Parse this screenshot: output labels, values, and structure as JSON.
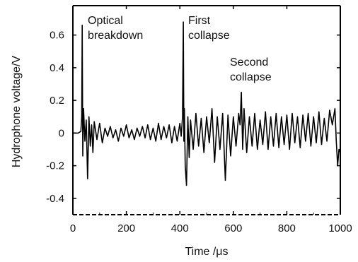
{
  "chart_data": {
    "type": "line",
    "title": "",
    "xlabel": "Time /μs",
    "ylabel": "Hydrophone voltage/V",
    "xlim": [
      0,
      1000
    ],
    "ylim": [
      -0.5,
      0.78
    ],
    "grid": false,
    "legend": "none",
    "line_color": "#000000",
    "x_ticks": [
      "0",
      "200",
      "400",
      "600",
      "800",
      "1000"
    ],
    "y_ticks": [
      "-0.4",
      "-0.2",
      "0",
      "0.2",
      "0.4",
      "0.6"
    ],
    "annotations": [
      {
        "lines": [
          "Optical",
          "breakdown"
        ],
        "x": 35,
        "y": 0.66
      },
      {
        "lines": [
          "First",
          "collapse"
        ],
        "x": 420,
        "y": 0.68
      },
      {
        "lines": [
          "Second",
          "collapse"
        ],
        "x": 630,
        "y": 0.25
      }
    ],
    "series": [
      {
        "x": [
          0,
          10,
          20,
          30,
          33,
          35,
          37,
          40,
          45,
          50,
          55,
          60,
          65,
          70,
          75,
          80,
          90,
          100,
          110,
          120,
          130,
          140,
          150,
          160,
          170,
          180,
          190,
          200,
          210,
          220,
          230,
          240,
          250,
          260,
          270,
          280,
          290,
          300,
          310,
          320,
          330,
          340,
          350,
          360,
          370,
          380,
          390,
          400,
          405,
          410,
          413,
          415,
          417,
          420,
          425,
          430,
          435,
          440,
          450,
          460,
          470,
          480,
          490,
          500,
          510,
          520,
          530,
          540,
          550,
          560,
          570,
          580,
          590,
          600,
          610,
          620,
          625,
          630,
          635,
          640,
          650,
          660,
          670,
          680,
          690,
          700,
          710,
          720,
          730,
          740,
          750,
          760,
          770,
          780,
          790,
          800,
          810,
          820,
          830,
          840,
          850,
          860,
          870,
          880,
          890,
          900,
          910,
          920,
          930,
          940,
          950,
          960,
          970,
          980,
          985,
          990,
          995,
          1000
        ],
        "y": [
          0.0,
          0.0,
          0.0,
          0.01,
          0.1,
          0.66,
          -0.14,
          0.15,
          -0.05,
          0.08,
          -0.28,
          0.1,
          -0.08,
          0.05,
          -0.12,
          0.07,
          -0.04,
          0.06,
          -0.06,
          0.03,
          -0.02,
          0.04,
          -0.03,
          0.02,
          -0.05,
          0.03,
          -0.02,
          0.05,
          -0.03,
          0.02,
          -0.04,
          0.03,
          -0.02,
          0.04,
          -0.03,
          0.05,
          -0.04,
          0.03,
          -0.05,
          0.06,
          -0.04,
          0.04,
          -0.03,
          0.05,
          -0.06,
          0.04,
          -0.05,
          0.06,
          -0.02,
          0.1,
          0.68,
          -0.05,
          0.15,
          -0.2,
          -0.32,
          0.1,
          -0.15,
          0.08,
          -0.1,
          0.12,
          -0.08,
          0.09,
          -0.12,
          0.1,
          -0.06,
          0.15,
          -0.18,
          0.1,
          -0.1,
          0.12,
          -0.29,
          0.11,
          -0.14,
          0.1,
          -0.08,
          0.12,
          0.05,
          0.25,
          -0.1,
          0.15,
          -0.12,
          0.1,
          -0.08,
          0.12,
          -0.1,
          0.08,
          -0.07,
          0.13,
          -0.1,
          0.1,
          -0.08,
          0.12,
          -0.09,
          0.1,
          -0.07,
          0.11,
          -0.1,
          0.12,
          -0.06,
          0.1,
          -0.09,
          0.11,
          -0.05,
          0.12,
          -0.08,
          0.1,
          -0.06,
          0.13,
          -0.07,
          0.09,
          -0.05,
          0.14,
          0.05,
          0.15,
          -0.05,
          -0.2,
          -0.1,
          -0.12
        ]
      }
    ]
  }
}
